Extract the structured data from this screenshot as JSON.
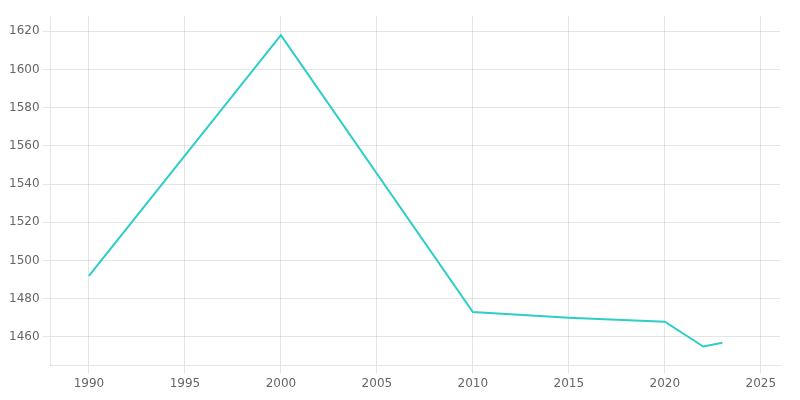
{
  "chart_data": {
    "type": "line",
    "x": [
      1990,
      2000,
      2010,
      2015,
      2020,
      2022,
      2023
    ],
    "values": [
      1492,
      1618,
      1473,
      1470,
      1468,
      1455,
      1457
    ],
    "color": "#2dcdc8",
    "xlim": [
      1988,
      2026
    ],
    "ylim": [
      1445,
      1628
    ],
    "xticks": [
      1990,
      1995,
      2000,
      2005,
      2010,
      2015,
      2020,
      2025
    ],
    "yticks": [
      1460,
      1480,
      1500,
      1520,
      1540,
      1560,
      1580,
      1600,
      1620
    ],
    "grid": true
  }
}
